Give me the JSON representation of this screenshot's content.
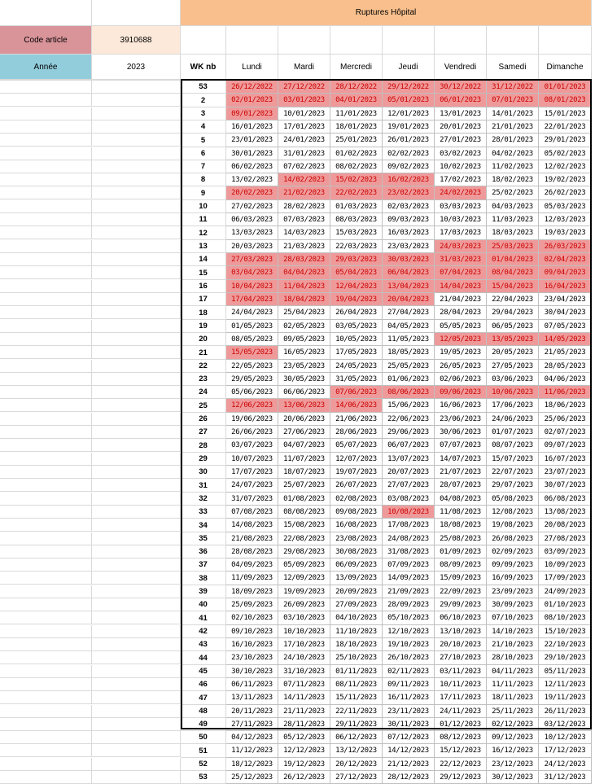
{
  "header": {
    "title": "Ruptures Hôpital",
    "title_bg": "#f9c08d",
    "code_label": "Code article",
    "code_value": "3910688",
    "year_label": "Année",
    "year_value": "2023",
    "wk_label": "WK nb",
    "days": [
      "Lundi",
      "Mardi",
      "Mercredi",
      "Jeudi",
      "Vendredi",
      "Samedi",
      "Dimanche"
    ]
  },
  "colors": {
    "code_label_bg": "#d9949a",
    "code_value_bg": "#fde9d9",
    "year_label_bg": "#92cddc",
    "highlight_fill": "#ef9a9a",
    "highlight_text": "#cc0000"
  },
  "weeks": [
    {
      "wk": "53",
      "days": [
        "26/12/2022",
        "27/12/2022",
        "28/12/2022",
        "29/12/2022",
        "30/12/2022",
        "31/12/2022",
        "01/01/2023"
      ],
      "hl": [
        1,
        1,
        1,
        1,
        1,
        1,
        1
      ]
    },
    {
      "wk": "2",
      "days": [
        "02/01/2023",
        "03/01/2023",
        "04/01/2023",
        "05/01/2023",
        "06/01/2023",
        "07/01/2023",
        "08/01/2023"
      ],
      "hl": [
        1,
        1,
        1,
        1,
        1,
        1,
        1
      ]
    },
    {
      "wk": "3",
      "days": [
        "09/01/2023",
        "10/01/2023",
        "11/01/2023",
        "12/01/2023",
        "13/01/2023",
        "14/01/2023",
        "15/01/2023"
      ],
      "hl": [
        1,
        0,
        0,
        0,
        0,
        0,
        0
      ]
    },
    {
      "wk": "4",
      "days": [
        "16/01/2023",
        "17/01/2023",
        "18/01/2023",
        "19/01/2023",
        "20/01/2023",
        "21/01/2023",
        "22/01/2023"
      ],
      "hl": [
        0,
        0,
        0,
        0,
        0,
        0,
        0
      ]
    },
    {
      "wk": "5",
      "days": [
        "23/01/2023",
        "24/01/2023",
        "25/01/2023",
        "26/01/2023",
        "27/01/2023",
        "28/01/2023",
        "29/01/2023"
      ],
      "hl": [
        0,
        0,
        0,
        0,
        0,
        0,
        0
      ]
    },
    {
      "wk": "6",
      "days": [
        "30/01/2023",
        "31/01/2023",
        "01/02/2023",
        "02/02/2023",
        "03/02/2023",
        "04/02/2023",
        "05/02/2023"
      ],
      "hl": [
        0,
        0,
        0,
        0,
        0,
        0,
        0
      ]
    },
    {
      "wk": "7",
      "days": [
        "06/02/2023",
        "07/02/2023",
        "08/02/2023",
        "09/02/2023",
        "10/02/2023",
        "11/02/2023",
        "12/02/2023"
      ],
      "hl": [
        0,
        0,
        0,
        0,
        0,
        0,
        0
      ]
    },
    {
      "wk": "8",
      "days": [
        "13/02/2023",
        "14/02/2023",
        "15/02/2023",
        "16/02/2023",
        "17/02/2023",
        "18/02/2023",
        "19/02/2023"
      ],
      "hl": [
        0,
        1,
        1,
        1,
        0,
        0,
        0
      ]
    },
    {
      "wk": "9",
      "days": [
        "20/02/2023",
        "21/02/2023",
        "22/02/2023",
        "23/02/2023",
        "24/02/2023",
        "25/02/2023",
        "26/02/2023"
      ],
      "hl": [
        1,
        1,
        1,
        1,
        1,
        0,
        0
      ]
    },
    {
      "wk": "10",
      "days": [
        "27/02/2023",
        "28/02/2023",
        "01/03/2023",
        "02/03/2023",
        "03/03/2023",
        "04/03/2023",
        "05/03/2023"
      ],
      "hl": [
        0,
        0,
        0,
        0,
        0,
        0,
        0
      ]
    },
    {
      "wk": "11",
      "days": [
        "06/03/2023",
        "07/03/2023",
        "08/03/2023",
        "09/03/2023",
        "10/03/2023",
        "11/03/2023",
        "12/03/2023"
      ],
      "hl": [
        0,
        0,
        0,
        0,
        0,
        0,
        0
      ]
    },
    {
      "wk": "12",
      "days": [
        "13/03/2023",
        "14/03/2023",
        "15/03/2023",
        "16/03/2023",
        "17/03/2023",
        "18/03/2023",
        "19/03/2023"
      ],
      "hl": [
        0,
        0,
        0,
        0,
        0,
        0,
        0
      ]
    },
    {
      "wk": "13",
      "days": [
        "20/03/2023",
        "21/03/2023",
        "22/03/2023",
        "23/03/2023",
        "24/03/2023",
        "25/03/2023",
        "26/03/2023"
      ],
      "hl": [
        0,
        0,
        0,
        0,
        1,
        1,
        1
      ]
    },
    {
      "wk": "14",
      "days": [
        "27/03/2023",
        "28/03/2023",
        "29/03/2023",
        "30/03/2023",
        "31/03/2023",
        "01/04/2023",
        "02/04/2023"
      ],
      "hl": [
        1,
        1,
        1,
        1,
        1,
        1,
        1
      ]
    },
    {
      "wk": "15",
      "days": [
        "03/04/2023",
        "04/04/2023",
        "05/04/2023",
        "06/04/2023",
        "07/04/2023",
        "08/04/2023",
        "09/04/2023"
      ],
      "hl": [
        1,
        1,
        1,
        1,
        1,
        1,
        1
      ]
    },
    {
      "wk": "16",
      "days": [
        "10/04/2023",
        "11/04/2023",
        "12/04/2023",
        "13/04/2023",
        "14/04/2023",
        "15/04/2023",
        "16/04/2023"
      ],
      "hl": [
        1,
        1,
        1,
        1,
        1,
        1,
        1
      ]
    },
    {
      "wk": "17",
      "days": [
        "17/04/2023",
        "18/04/2023",
        "19/04/2023",
        "20/04/2023",
        "21/04/2023",
        "22/04/2023",
        "23/04/2023"
      ],
      "hl": [
        1,
        1,
        1,
        1,
        0,
        0,
        0
      ]
    },
    {
      "wk": "18",
      "days": [
        "24/04/2023",
        "25/04/2023",
        "26/04/2023",
        "27/04/2023",
        "28/04/2023",
        "29/04/2023",
        "30/04/2023"
      ],
      "hl": [
        0,
        0,
        0,
        0,
        0,
        0,
        0
      ]
    },
    {
      "wk": "19",
      "days": [
        "01/05/2023",
        "02/05/2023",
        "03/05/2023",
        "04/05/2023",
        "05/05/2023",
        "06/05/2023",
        "07/05/2023"
      ],
      "hl": [
        0,
        0,
        0,
        0,
        0,
        0,
        0
      ]
    },
    {
      "wk": "20",
      "days": [
        "08/05/2023",
        "09/05/2023",
        "10/05/2023",
        "11/05/2023",
        "12/05/2023",
        "13/05/2023",
        "14/05/2023"
      ],
      "hl": [
        0,
        0,
        0,
        0,
        1,
        1,
        1
      ]
    },
    {
      "wk": "21",
      "days": [
        "15/05/2023",
        "16/05/2023",
        "17/05/2023",
        "18/05/2023",
        "19/05/2023",
        "20/05/2023",
        "21/05/2023"
      ],
      "hl": [
        1,
        0,
        0,
        0,
        0,
        0,
        0
      ]
    },
    {
      "wk": "22",
      "days": [
        "22/05/2023",
        "23/05/2023",
        "24/05/2023",
        "25/05/2023",
        "26/05/2023",
        "27/05/2023",
        "28/05/2023"
      ],
      "hl": [
        0,
        0,
        0,
        0,
        0,
        0,
        0
      ]
    },
    {
      "wk": "23",
      "days": [
        "29/05/2023",
        "30/05/2023",
        "31/05/2023",
        "01/06/2023",
        "02/06/2023",
        "03/06/2023",
        "04/06/2023"
      ],
      "hl": [
        0,
        0,
        0,
        0,
        0,
        0,
        0
      ]
    },
    {
      "wk": "24",
      "days": [
        "05/06/2023",
        "06/06/2023",
        "07/06/2023",
        "08/06/2023",
        "09/06/2023",
        "10/06/2023",
        "11/06/2023"
      ],
      "hl": [
        0,
        0,
        1,
        1,
        1,
        1,
        1
      ]
    },
    {
      "wk": "25",
      "days": [
        "12/06/2023",
        "13/06/2023",
        "14/06/2023",
        "15/06/2023",
        "16/06/2023",
        "17/06/2023",
        "18/06/2023"
      ],
      "hl": [
        1,
        1,
        1,
        0,
        0,
        0,
        0
      ]
    },
    {
      "wk": "26",
      "days": [
        "19/06/2023",
        "20/06/2023",
        "21/06/2023",
        "22/06/2023",
        "23/06/2023",
        "24/06/2023",
        "25/06/2023"
      ],
      "hl": [
        0,
        0,
        0,
        0,
        0,
        0,
        0
      ]
    },
    {
      "wk": "27",
      "days": [
        "26/06/2023",
        "27/06/2023",
        "28/06/2023",
        "29/06/2023",
        "30/06/2023",
        "01/07/2023",
        "02/07/2023"
      ],
      "hl": [
        0,
        0,
        0,
        0,
        0,
        0,
        0
      ]
    },
    {
      "wk": "28",
      "days": [
        "03/07/2023",
        "04/07/2023",
        "05/07/2023",
        "06/07/2023",
        "07/07/2023",
        "08/07/2023",
        "09/07/2023"
      ],
      "hl": [
        0,
        0,
        0,
        0,
        0,
        0,
        0
      ]
    },
    {
      "wk": "29",
      "days": [
        "10/07/2023",
        "11/07/2023",
        "12/07/2023",
        "13/07/2023",
        "14/07/2023",
        "15/07/2023",
        "16/07/2023"
      ],
      "hl": [
        0,
        0,
        0,
        0,
        0,
        0,
        0
      ]
    },
    {
      "wk": "30",
      "days": [
        "17/07/2023",
        "18/07/2023",
        "19/07/2023",
        "20/07/2023",
        "21/07/2023",
        "22/07/2023",
        "23/07/2023"
      ],
      "hl": [
        0,
        0,
        0,
        0,
        0,
        0,
        0
      ]
    },
    {
      "wk": "31",
      "days": [
        "24/07/2023",
        "25/07/2023",
        "26/07/2023",
        "27/07/2023",
        "28/07/2023",
        "29/07/2023",
        "30/07/2023"
      ],
      "hl": [
        0,
        0,
        0,
        0,
        0,
        0,
        0
      ]
    },
    {
      "wk": "32",
      "days": [
        "31/07/2023",
        "01/08/2023",
        "02/08/2023",
        "03/08/2023",
        "04/08/2023",
        "05/08/2023",
        "06/08/2023"
      ],
      "hl": [
        0,
        0,
        0,
        0,
        0,
        0,
        0
      ]
    },
    {
      "wk": "33",
      "days": [
        "07/08/2023",
        "08/08/2023",
        "09/08/2023",
        "10/08/2023",
        "11/08/2023",
        "12/08/2023",
        "13/08/2023"
      ],
      "hl": [
        0,
        0,
        0,
        1,
        0,
        0,
        0
      ]
    },
    {
      "wk": "34",
      "days": [
        "14/08/2023",
        "15/08/2023",
        "16/08/2023",
        "17/08/2023",
        "18/08/2023",
        "19/08/2023",
        "20/08/2023"
      ],
      "hl": [
        0,
        0,
        0,
        0,
        0,
        0,
        0
      ]
    },
    {
      "wk": "35",
      "days": [
        "21/08/2023",
        "22/08/2023",
        "23/08/2023",
        "24/08/2023",
        "25/08/2023",
        "26/08/2023",
        "27/08/2023"
      ],
      "hl": [
        0,
        0,
        0,
        0,
        0,
        0,
        0
      ]
    },
    {
      "wk": "36",
      "days": [
        "28/08/2023",
        "29/08/2023",
        "30/08/2023",
        "31/08/2023",
        "01/09/2023",
        "02/09/2023",
        "03/09/2023"
      ],
      "hl": [
        0,
        0,
        0,
        0,
        0,
        0,
        0
      ]
    },
    {
      "wk": "37",
      "days": [
        "04/09/2023",
        "05/09/2023",
        "06/09/2023",
        "07/09/2023",
        "08/09/2023",
        "09/09/2023",
        "10/09/2023"
      ],
      "hl": [
        0,
        0,
        0,
        0,
        0,
        0,
        0
      ]
    },
    {
      "wk": "38",
      "days": [
        "11/09/2023",
        "12/09/2023",
        "13/09/2023",
        "14/09/2023",
        "15/09/2023",
        "16/09/2023",
        "17/09/2023"
      ],
      "hl": [
        0,
        0,
        0,
        0,
        0,
        0,
        0
      ]
    },
    {
      "wk": "39",
      "days": [
        "18/09/2023",
        "19/09/2023",
        "20/09/2023",
        "21/09/2023",
        "22/09/2023",
        "23/09/2023",
        "24/09/2023"
      ],
      "hl": [
        0,
        0,
        0,
        0,
        0,
        0,
        0
      ]
    },
    {
      "wk": "40",
      "days": [
        "25/09/2023",
        "26/09/2023",
        "27/09/2023",
        "28/09/2023",
        "29/09/2023",
        "30/09/2023",
        "01/10/2023"
      ],
      "hl": [
        0,
        0,
        0,
        0,
        0,
        0,
        0
      ]
    },
    {
      "wk": "41",
      "days": [
        "02/10/2023",
        "03/10/2023",
        "04/10/2023",
        "05/10/2023",
        "06/10/2023",
        "07/10/2023",
        "08/10/2023"
      ],
      "hl": [
        0,
        0,
        0,
        0,
        0,
        0,
        0
      ]
    },
    {
      "wk": "42",
      "days": [
        "09/10/2023",
        "10/10/2023",
        "11/10/2023",
        "12/10/2023",
        "13/10/2023",
        "14/10/2023",
        "15/10/2023"
      ],
      "hl": [
        0,
        0,
        0,
        0,
        0,
        0,
        0
      ]
    },
    {
      "wk": "43",
      "days": [
        "16/10/2023",
        "17/10/2023",
        "18/10/2023",
        "19/10/2023",
        "20/10/2023",
        "21/10/2023",
        "22/10/2023"
      ],
      "hl": [
        0,
        0,
        0,
        0,
        0,
        0,
        0
      ]
    },
    {
      "wk": "44",
      "days": [
        "23/10/2023",
        "24/10/2023",
        "25/10/2023",
        "26/10/2023",
        "27/10/2023",
        "28/10/2023",
        "29/10/2023"
      ],
      "hl": [
        0,
        0,
        0,
        0,
        0,
        0,
        0
      ]
    },
    {
      "wk": "45",
      "days": [
        "30/10/2023",
        "31/10/2023",
        "01/11/2023",
        "02/11/2023",
        "03/11/2023",
        "04/11/2023",
        "05/11/2023"
      ],
      "hl": [
        0,
        0,
        0,
        0,
        0,
        0,
        0
      ]
    },
    {
      "wk": "46",
      "days": [
        "06/11/2023",
        "07/11/2023",
        "08/11/2023",
        "09/11/2023",
        "10/11/2023",
        "11/11/2023",
        "12/11/2023"
      ],
      "hl": [
        0,
        0,
        0,
        0,
        0,
        0,
        0
      ]
    },
    {
      "wk": "47",
      "days": [
        "13/11/2023",
        "14/11/2023",
        "15/11/2023",
        "16/11/2023",
        "17/11/2023",
        "18/11/2023",
        "19/11/2023"
      ],
      "hl": [
        0,
        0,
        0,
        0,
        0,
        0,
        0
      ]
    },
    {
      "wk": "48",
      "days": [
        "20/11/2023",
        "21/11/2023",
        "22/11/2023",
        "23/11/2023",
        "24/11/2023",
        "25/11/2023",
        "26/11/2023"
      ],
      "hl": [
        0,
        0,
        0,
        0,
        0,
        0,
        0
      ]
    },
    {
      "wk": "49",
      "days": [
        "27/11/2023",
        "28/11/2023",
        "29/11/2023",
        "30/11/2023",
        "01/12/2023",
        "02/12/2023",
        "03/12/2023"
      ],
      "hl": [
        0,
        0,
        0,
        0,
        0,
        0,
        0
      ]
    },
    {
      "wk": "50",
      "days": [
        "04/12/2023",
        "05/12/2023",
        "06/12/2023",
        "07/12/2023",
        "08/12/2023",
        "09/12/2023",
        "10/12/2023"
      ],
      "hl": [
        0,
        0,
        0,
        0,
        0,
        0,
        0
      ]
    },
    {
      "wk": "51",
      "days": [
        "11/12/2023",
        "12/12/2023",
        "13/12/2023",
        "14/12/2023",
        "15/12/2023",
        "16/12/2023",
        "17/12/2023"
      ],
      "hl": [
        0,
        0,
        0,
        0,
        0,
        0,
        0
      ]
    },
    {
      "wk": "52",
      "days": [
        "18/12/2023",
        "19/12/2023",
        "20/12/2023",
        "21/12/2023",
        "22/12/2023",
        "23/12/2023",
        "24/12/2023"
      ],
      "hl": [
        0,
        0,
        0,
        0,
        0,
        0,
        0
      ]
    },
    {
      "wk": "53",
      "days": [
        "25/12/2023",
        "26/12/2023",
        "27/12/2023",
        "28/12/2023",
        "29/12/2023",
        "30/12/2023",
        "31/12/2023"
      ],
      "hl": [
        0,
        0,
        0,
        0,
        0,
        0,
        0
      ]
    }
  ]
}
